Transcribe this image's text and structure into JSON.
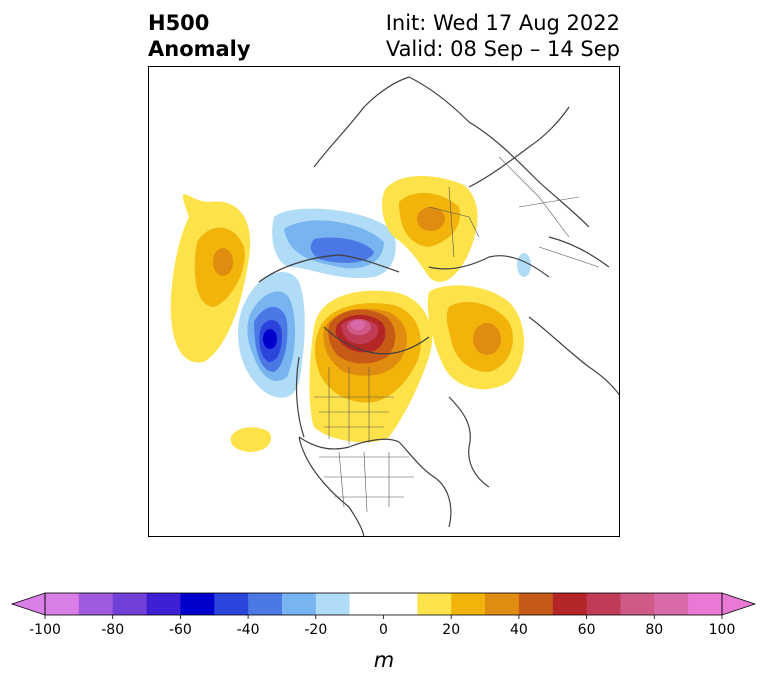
{
  "title": {
    "left_line1": "H500",
    "left_line2": "Anomaly",
    "right_line1": "Init: Wed 17 Aug 2022",
    "right_line2": "Valid: 08 Sep – 14 Sep"
  },
  "map": {
    "field": "500 hPa geopotential height anomaly",
    "projection": "north polar stereographic",
    "features": [
      {
        "name": "positive anomaly north pacific",
        "sign": "positive",
        "peak_value": 30
      },
      {
        "name": "negative anomaly gulf of alaska",
        "sign": "negative",
        "peak_value": -60
      },
      {
        "name": "negative anomaly bering strait",
        "sign": "negative",
        "peak_value": -30
      },
      {
        "name": "positive anomaly canadian arctic",
        "sign": "positive",
        "peak_value": 90
      },
      {
        "name": "positive anomaly western canada",
        "sign": "positive",
        "peak_value": 30
      },
      {
        "name": "positive anomaly siberia",
        "sign": "positive",
        "peak_value": 40
      },
      {
        "name": "positive anomaly east siberia",
        "sign": "positive",
        "peak_value": 20
      },
      {
        "name": "positive anomaly europe arctic",
        "sign": "positive",
        "peak_value": 30
      },
      {
        "name": "positive anomaly east pacific small",
        "sign": "positive",
        "peak_value": 20
      },
      {
        "name": "negative anomaly central arctic small",
        "sign": "negative",
        "peak_value": -20
      }
    ]
  },
  "colorbar": {
    "levels": [
      -100,
      -90,
      -80,
      -70,
      -60,
      -50,
      -40,
      -30,
      -20,
      -10,
      10,
      20,
      30,
      40,
      50,
      60,
      70,
      80,
      90,
      100
    ],
    "colors": [
      "#d97ee6",
      "#a05ae0",
      "#7040d8",
      "#3e1fd4",
      "#0000cd",
      "#2a44dc",
      "#4c78e6",
      "#78b4f0",
      "#b0dcf8",
      "#ffffff",
      "#fde24a",
      "#f2b40a",
      "#e08c10",
      "#c85a18",
      "#b42626",
      "#c03c56",
      "#cf5a88",
      "#d86aaa",
      "#e87ad6"
    ],
    "under_color": "#d97ee6",
    "over_color": "#e87ad6",
    "ticks": [
      "-100",
      "-80",
      "-60",
      "-40",
      "-20",
      "0",
      "20",
      "40",
      "60",
      "80",
      "100"
    ],
    "unit_label": "m"
  }
}
